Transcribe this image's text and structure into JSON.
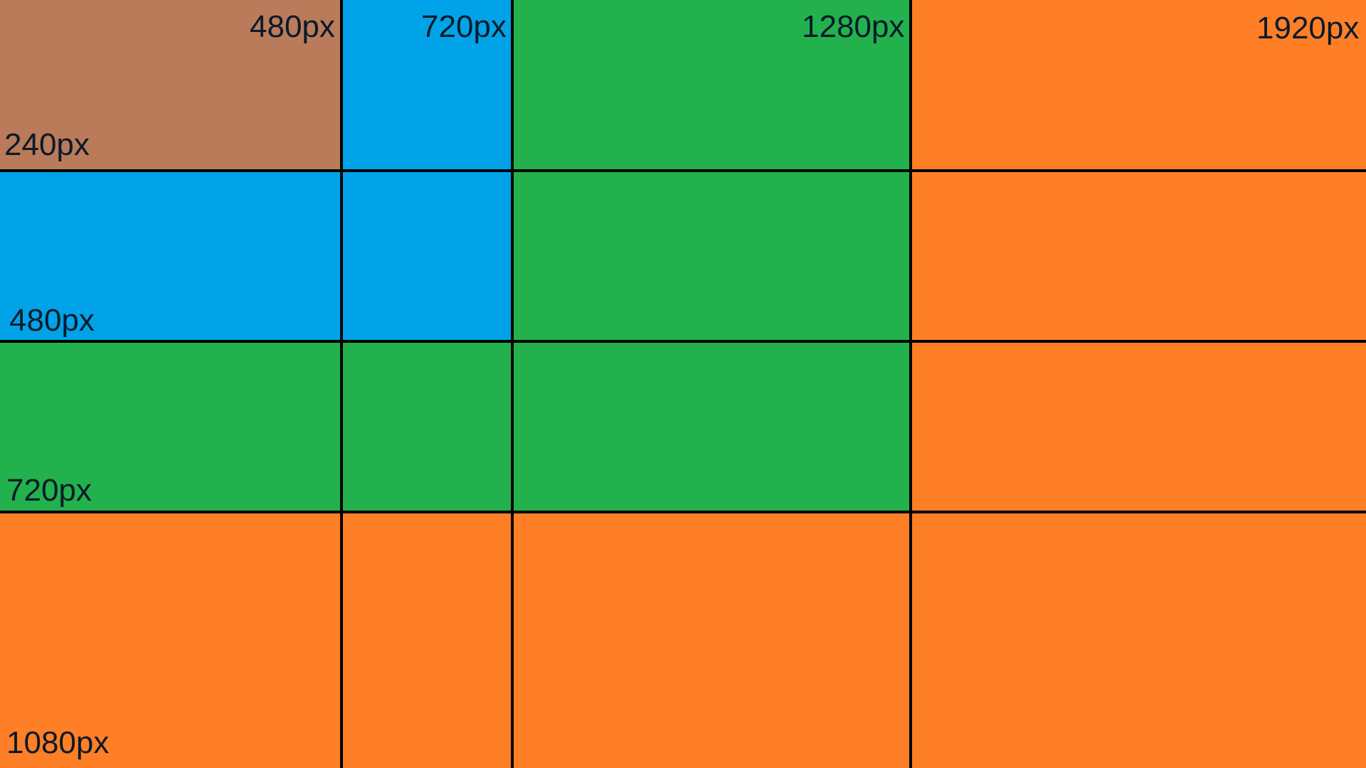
{
  "colors": {
    "brown": "#B97B59",
    "blue": "#00A3E8",
    "green": "#22B14C",
    "orange": "#FF7F27",
    "lines": "#000000"
  },
  "labels": {
    "width_480": "480px",
    "width_720": "720px",
    "width_1280": "1280px",
    "width_1920": "1920px",
    "height_240": "240px",
    "height_480": "480px",
    "height_720": "720px",
    "height_1080": "1080px"
  }
}
